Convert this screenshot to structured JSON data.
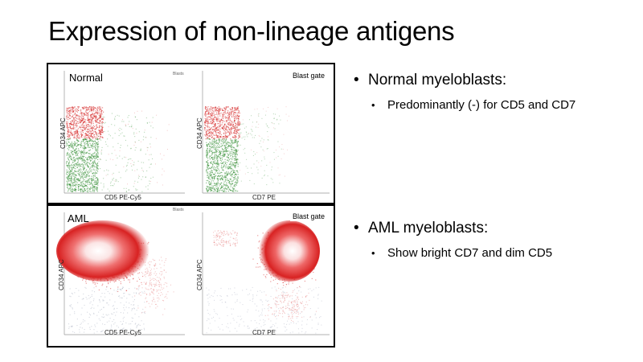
{
  "slide": {
    "title": "Expression of non-lineage antigens"
  },
  "panels": {
    "top": {
      "label": "Normal",
      "tiny_label": "Blasts",
      "gate_label": "Blast gate",
      "left_plot": {
        "y_axis": "CD34 APC",
        "x_axis": "CD5 PE-Cy5"
      },
      "right_plot": {
        "y_axis": "CD34 APC",
        "x_axis": "CD7 PE"
      }
    },
    "bottom": {
      "label": "AML",
      "tiny_label": "Blasts",
      "gate_label": "Blast gate",
      "left_plot": {
        "y_axis": "CD34 APC",
        "x_axis": "CD5 PE-Cy5"
      },
      "right_plot": {
        "y_axis": "CD34 APC",
        "x_axis": "CD7 PE"
      }
    }
  },
  "bullets": [
    {
      "text": "Normal myeloblasts:",
      "sub": [
        "Predominantly (-) for CD5 and CD7"
      ]
    },
    {
      "text": "AML myeloblasts:",
      "sub": [
        "Show bright CD7 and dim CD5"
      ]
    }
  ],
  "colors": {
    "blast_red": "#d42020",
    "other_green": "#2e8b2e",
    "background_grey": "#8890a8"
  }
}
